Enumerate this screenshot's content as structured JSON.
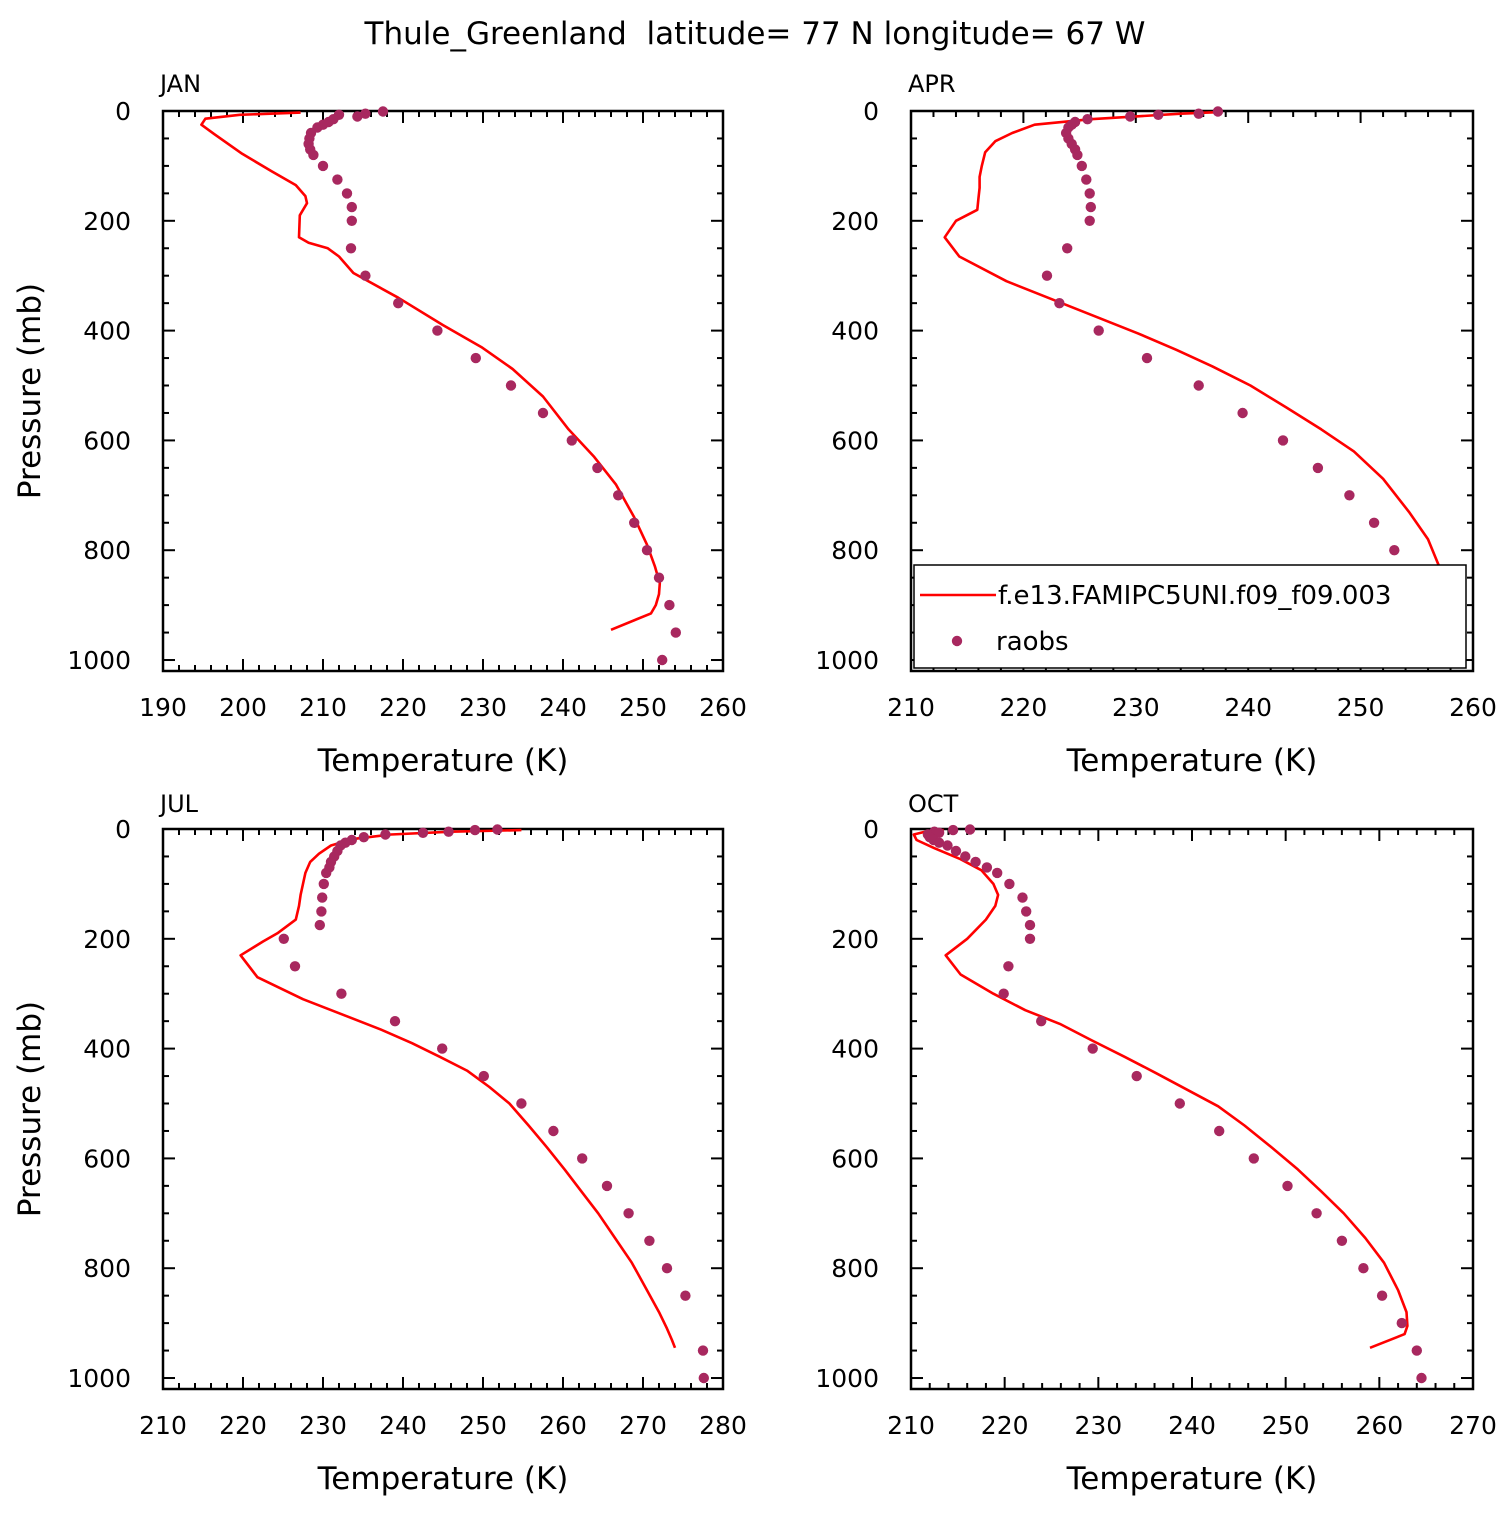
{
  "figure": {
    "title": "Thule_Greenland  latitude= 77 N longitude= 67 W"
  },
  "colors": {
    "model_line": "#ff0000",
    "raobs_marker": "#a8285f",
    "axis": "#000000"
  },
  "legend": {
    "placement": "lower-right of APR panel",
    "model_label": "f.e13.FAMIPC5UNI.f09_f09.003",
    "obs_label": "raobs"
  },
  "chart_data": [
    {
      "panel": "JAN",
      "type": "line",
      "xlabel": "Temperature (K)",
      "ylabel": "Pressure (mb)",
      "xlim": [
        190,
        260
      ],
      "ylim": [
        1020,
        0
      ],
      "y_reversed": true,
      "xticks": [
        "190",
        "200",
        "210",
        "220",
        "230",
        "240",
        "250",
        "260"
      ],
      "yticks": [
        "0",
        "200",
        "400",
        "600",
        "800",
        "1000"
      ],
      "model_line": {
        "x": [
          207.2,
          199.6,
          195.3,
          194.8,
          196.4,
          199.9,
          203.6,
          206.6,
          207.8,
          208.0,
          207.1,
          207.0,
          208.2,
          210.6,
          212.0,
          213.8,
          219.4,
          225.0,
          229.8,
          233.7,
          237.5,
          240.7,
          243.9,
          246.6,
          248.9,
          250.5,
          251.5,
          252.1,
          252.0,
          251.6,
          251.0,
          246.0
        ],
        "y": [
          3,
          7,
          14,
          25,
          42,
          78,
          110,
          135,
          155,
          168,
          190,
          230,
          240,
          250,
          265,
          295,
          340,
          390,
          430,
          470,
          520,
          580,
          630,
          680,
          740,
          790,
          830,
          860,
          880,
          900,
          915,
          945
        ]
      },
      "raobs": {
        "x": [
          217.5,
          215.3,
          212.0,
          214.3,
          211.3,
          210.7,
          210.0,
          209.3,
          208.5,
          208.3,
          208.2,
          208.4,
          208.8,
          210.0,
          211.8,
          213.0,
          213.6,
          213.6,
          213.5,
          215.3,
          219.4,
          224.3,
          229.1,
          233.5,
          237.5,
          241.1,
          244.3,
          246.9,
          248.9,
          250.5,
          252.0,
          253.3,
          254.1,
          252.4
        ],
        "y": [
          1,
          5,
          7,
          10,
          15,
          20,
          25,
          30,
          40,
          50,
          60,
          70,
          80,
          100,
          125,
          150,
          175,
          200,
          250,
          300,
          350,
          400,
          450,
          500,
          550,
          600,
          650,
          700,
          750,
          800,
          850,
          900,
          950,
          1000
        ]
      }
    },
    {
      "panel": "APR",
      "type": "line",
      "xlabel": "Temperature (K)",
      "ylabel": "",
      "xlim": [
        210,
        260
      ],
      "ylim": [
        1020,
        0
      ],
      "y_reversed": true,
      "xticks": [
        "210",
        "220",
        "230",
        "240",
        "250",
        "260"
      ],
      "yticks": [
        "0",
        "200",
        "400",
        "600",
        "800",
        "1000"
      ],
      "model_line": {
        "x": [
          237.5,
          234.0,
          226.0,
          221.0,
          219.0,
          217.5,
          216.6,
          216.3,
          216.1,
          216.1,
          216.0,
          215.9,
          214.0,
          213.0,
          214.3,
          218.5,
          222.8,
          226.5,
          230.2,
          233.6,
          236.8,
          240.2,
          243.4,
          246.5,
          249.4,
          252.0,
          254.3,
          256.0,
          257.0,
          257.4,
          257.3,
          256.5,
          253.5
        ],
        "y": [
          2,
          5,
          15,
          25,
          40,
          55,
          75,
          100,
          120,
          140,
          160,
          180,
          200,
          230,
          265,
          310,
          345,
          375,
          405,
          435,
          465,
          500,
          540,
          580,
          620,
          670,
          730,
          780,
          830,
          870,
          905,
          925,
          945
        ]
      },
      "raobs": {
        "x": [
          237.3,
          235.6,
          232.0,
          229.5,
          225.7,
          224.6,
          224.3,
          224.0,
          223.8,
          224.0,
          224.3,
          224.6,
          224.8,
          225.2,
          225.6,
          225.9,
          226.0,
          225.9,
          223.9,
          222.1,
          223.2,
          226.7,
          231.0,
          235.6,
          239.5,
          243.1,
          246.2,
          249.0,
          251.2,
          253.0,
          254.5,
          255.8,
          257.0,
          257.0
        ],
        "y": [
          1,
          5,
          7,
          10,
          15,
          20,
          25,
          30,
          40,
          50,
          60,
          70,
          80,
          100,
          125,
          150,
          175,
          200,
          250,
          300,
          350,
          400,
          450,
          500,
          550,
          600,
          650,
          700,
          750,
          800,
          850,
          900,
          950,
          1000
        ]
      }
    },
    {
      "panel": "JUL",
      "type": "line",
      "xlabel": "Temperature (K)",
      "ylabel": "Pressure (mb)",
      "xlim": [
        210,
        280
      ],
      "ylim": [
        1020,
        0
      ],
      "y_reversed": true,
      "xticks": [
        "210",
        "220",
        "230",
        "240",
        "250",
        "260",
        "270",
        "280"
      ],
      "yticks": [
        "0",
        "200",
        "400",
        "600",
        "800",
        "1000"
      ],
      "model_line": {
        "x": [
          254.8,
          246.0,
          238.5,
          233.8,
          231.0,
          229.5,
          228.4,
          227.8,
          227.5,
          227.2,
          227.0,
          226.6,
          224.3,
          222.5,
          219.7,
          221.8,
          227.5,
          232.8,
          237.2,
          241.1,
          244.6,
          248.0,
          250.8,
          253.3,
          255.7,
          258.0,
          260.2,
          262.3,
          264.4,
          266.5,
          268.6,
          270.5,
          272.0,
          273.0,
          273.6,
          274.0
        ],
        "y": [
          2,
          5,
          10,
          18,
          30,
          45,
          60,
          80,
          100,
          120,
          140,
          165,
          190,
          205,
          230,
          270,
          310,
          340,
          365,
          390,
          415,
          440,
          470,
          500,
          540,
          580,
          620,
          660,
          700,
          745,
          790,
          840,
          880,
          910,
          930,
          945
        ]
      },
      "raobs": {
        "x": [
          251.8,
          249.0,
          245.7,
          242.5,
          237.8,
          235.1,
          233.6,
          232.8,
          232.2,
          231.8,
          231.4,
          231.0,
          230.8,
          230.4,
          230.1,
          229.9,
          229.8,
          229.6,
          225.1,
          226.5,
          232.3,
          239.0,
          244.9,
          250.1,
          254.8,
          258.8,
          262.4,
          265.5,
          268.2,
          270.8,
          273.0,
          275.3,
          277.5,
          277.6
        ],
        "y": [
          1,
          2,
          5,
          7,
          10,
          15,
          20,
          25,
          30,
          40,
          50,
          60,
          70,
          80,
          100,
          125,
          150,
          175,
          200,
          250,
          300,
          350,
          400,
          450,
          500,
          550,
          600,
          650,
          700,
          750,
          800,
          850,
          950,
          1000
        ]
      }
    },
    {
      "panel": "OCT",
      "type": "line",
      "xlabel": "Temperature (K)",
      "ylabel": "",
      "xlim": [
        210,
        270
      ],
      "ylim": [
        1020,
        0
      ],
      "y_reversed": true,
      "xticks": [
        "210",
        "220",
        "230",
        "240",
        "250",
        "260",
        "270"
      ],
      "yticks": [
        "0",
        "200",
        "400",
        "600",
        "800",
        "1000"
      ],
      "model_line": {
        "x": [
          213.5,
          211.5,
          210.3,
          210.6,
          212.5,
          215.3,
          217.5,
          218.8,
          219.3,
          219.0,
          218.0,
          216.0,
          213.7,
          215.3,
          218.8,
          222.2,
          225.9,
          229.3,
          232.8,
          236.2,
          239.5,
          242.8,
          245.6,
          248.5,
          251.3,
          253.8,
          256.2,
          258.5,
          260.5,
          262.0,
          262.9,
          263.0,
          262.7,
          259.0
        ],
        "y": [
          2,
          5,
          10,
          20,
          35,
          55,
          75,
          100,
          120,
          140,
          165,
          200,
          230,
          265,
          300,
          330,
          355,
          385,
          415,
          445,
          475,
          505,
          540,
          580,
          620,
          660,
          700,
          745,
          790,
          840,
          880,
          905,
          920,
          945
        ]
      },
      "raobs": {
        "x": [
          216.3,
          214.5,
          212.5,
          213.0,
          211.8,
          212.0,
          212.4,
          213.0,
          213.9,
          214.8,
          215.8,
          216.9,
          218.1,
          219.2,
          220.5,
          221.9,
          222.3,
          222.7,
          222.7,
          220.4,
          219.9,
          223.9,
          229.4,
          234.1,
          238.7,
          242.9,
          246.6,
          250.2,
          253.3,
          256.0,
          258.3,
          260.3,
          262.4,
          264.0,
          264.5
        ],
        "y": [
          1,
          2,
          5,
          7,
          10,
          15,
          20,
          25,
          30,
          40,
          50,
          60,
          70,
          80,
          100,
          125,
          150,
          175,
          200,
          250,
          300,
          350,
          400,
          450,
          500,
          550,
          600,
          650,
          700,
          750,
          800,
          850,
          900,
          950,
          1000
        ]
      }
    }
  ]
}
